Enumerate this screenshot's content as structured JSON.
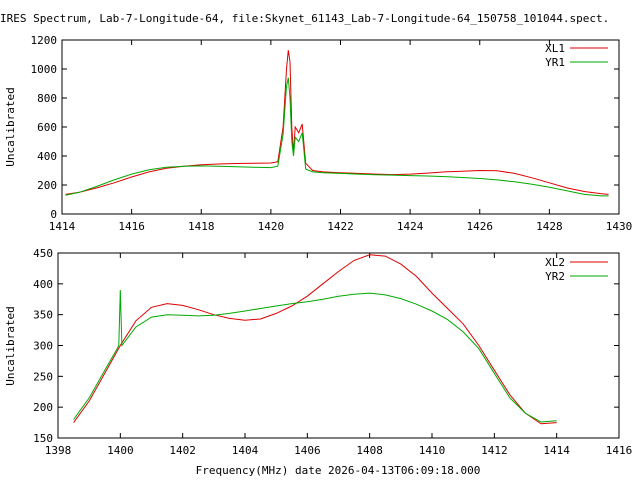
{
  "title": "IRES Spectrum, Lab-7-Longitude-64, file:Skynet_61143_Lab-7-Longitude-64_150758_101044.spect.",
  "xlabel": "Frequency(MHz) date 2026-04-13T06:09:18.000",
  "colors": {
    "red": "#dd0000",
    "green": "#00aa00"
  },
  "chart_data": [
    {
      "type": "line",
      "ylabel": "Uncalibrated",
      "xlim": [
        1414,
        1430
      ],
      "ylim": [
        0,
        1200
      ],
      "xticks": [
        1414,
        1416,
        1418,
        1420,
        1422,
        1424,
        1426,
        1428,
        1430
      ],
      "yticks": [
        0,
        200,
        400,
        600,
        800,
        1000,
        1200
      ],
      "legend_position": "top-right",
      "series": [
        {
          "name": "XL1",
          "color": "#dd0000",
          "x": [
            1414.1,
            1414.5,
            1415,
            1415.5,
            1416,
            1416.5,
            1417,
            1417.5,
            1418,
            1418.5,
            1419,
            1419.5,
            1420,
            1420.2,
            1420.35,
            1420.45,
            1420.5,
            1420.55,
            1420.6,
            1420.65,
            1420.7,
            1420.8,
            1420.9,
            1421.0,
            1421.2,
            1421.5,
            1422,
            1422.5,
            1423,
            1423.5,
            1424,
            1424.5,
            1425,
            1425.5,
            1426,
            1426.5,
            1427,
            1427.5,
            1428,
            1428.5,
            1429,
            1429.5,
            1429.7
          ],
          "y": [
            135,
            150,
            180,
            215,
            255,
            290,
            315,
            330,
            340,
            345,
            348,
            350,
            352,
            360,
            600,
            1000,
            1130,
            1050,
            600,
            420,
            600,
            560,
            620,
            350,
            300,
            290,
            285,
            280,
            275,
            272,
            275,
            282,
            290,
            295,
            300,
            298,
            280,
            250,
            215,
            180,
            155,
            140,
            135
          ]
        },
        {
          "name": "YR1",
          "color": "#00aa00",
          "x": [
            1414.1,
            1414.5,
            1415,
            1415.5,
            1416,
            1416.5,
            1417,
            1417.5,
            1418,
            1418.5,
            1419,
            1419.5,
            1420,
            1420.2,
            1420.35,
            1420.45,
            1420.5,
            1420.55,
            1420.6,
            1420.65,
            1420.7,
            1420.8,
            1420.9,
            1421.0,
            1421.2,
            1421.5,
            1422,
            1422.5,
            1423,
            1423.5,
            1424,
            1424.5,
            1425,
            1425.5,
            1426,
            1426.5,
            1427,
            1427.5,
            1428,
            1428.5,
            1429,
            1429.5,
            1429.7
          ],
          "y": [
            130,
            150,
            190,
            235,
            275,
            305,
            322,
            330,
            332,
            330,
            326,
            322,
            320,
            330,
            550,
            880,
            940,
            800,
            500,
            400,
            530,
            500,
            560,
            310,
            290,
            285,
            280,
            275,
            270,
            268,
            265,
            262,
            258,
            252,
            245,
            235,
            222,
            205,
            185,
            160,
            135,
            125,
            125
          ]
        }
      ]
    },
    {
      "type": "line",
      "ylabel": "Uncalibrated",
      "xlim": [
        1398,
        1416
      ],
      "ylim": [
        150,
        450
      ],
      "xticks": [
        1398,
        1400,
        1402,
        1404,
        1406,
        1408,
        1410,
        1412,
        1414,
        1416
      ],
      "yticks": [
        150,
        200,
        250,
        300,
        350,
        400,
        450
      ],
      "legend_position": "top-right",
      "series": [
        {
          "name": "XL2",
          "color": "#dd0000",
          "x": [
            1398.5,
            1399,
            1399.5,
            1400,
            1400.5,
            1401,
            1401.5,
            1402,
            1402.5,
            1403,
            1403.5,
            1404,
            1404.5,
            1405,
            1405.5,
            1406,
            1406.5,
            1407,
            1407.5,
            1408,
            1408.5,
            1409,
            1409.5,
            1410,
            1410.5,
            1411,
            1411.5,
            1412,
            1412.5,
            1413,
            1413.5,
            1414
          ],
          "y": [
            175,
            210,
            255,
            300,
            340,
            362,
            368,
            365,
            358,
            350,
            344,
            341,
            343,
            352,
            364,
            380,
            400,
            420,
            438,
            447,
            445,
            432,
            412,
            385,
            360,
            335,
            300,
            260,
            220,
            190,
            173,
            175
          ]
        },
        {
          "name": "YR2",
          "color": "#00aa00",
          "x": [
            1398.5,
            1399,
            1399.5,
            1399.9,
            1399.95,
            1400,
            1400.05,
            1400.5,
            1401,
            1401.5,
            1402,
            1402.5,
            1403,
            1403.5,
            1404,
            1404.5,
            1405,
            1405.5,
            1406,
            1406.5,
            1407,
            1407.5,
            1408,
            1408.5,
            1409,
            1409.5,
            1410,
            1410.5,
            1411,
            1411.5,
            1412,
            1412.5,
            1413,
            1413.5,
            1414
          ],
          "y": [
            180,
            215,
            260,
            295,
            300,
            390,
            300,
            330,
            346,
            350,
            349,
            348,
            349,
            352,
            356,
            360,
            364,
            368,
            371,
            375,
            380,
            383,
            385,
            382,
            376,
            367,
            356,
            342,
            322,
            295,
            255,
            215,
            190,
            176,
            178
          ]
        }
      ]
    }
  ]
}
